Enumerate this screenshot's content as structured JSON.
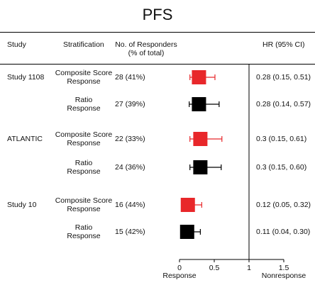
{
  "chart_data": {
    "type": "forest",
    "title": "PFS",
    "headers": {
      "study": "Study",
      "stratification": "Stratification",
      "responders": "No. of Responders\n(% of total)",
      "hr": "HR (95% CI)"
    },
    "xaxis": {
      "ticks": [
        0,
        0.5,
        1,
        1.5
      ],
      "tick_labels": [
        "0",
        "0.5",
        "1",
        "1.5"
      ],
      "range": [
        0,
        1.5
      ],
      "reference_line": 1,
      "left_label": "Response",
      "right_label": "Nonresponse"
    },
    "series": [
      {
        "name": "Composite Score Response",
        "color": "#e8272a"
      },
      {
        "name": "Ratio Response",
        "color": "#000000"
      }
    ],
    "rows": [
      {
        "study": "Study 1108",
        "stratification": "Composite Score\nResponse",
        "responders": "28 (41%)",
        "hr_text": "0.28 (0.15, 0.51)",
        "hr": 0.28,
        "ci_low": 0.15,
        "ci_high": 0.51,
        "color": "#e8272a"
      },
      {
        "study": "",
        "stratification": "Ratio\nResponse",
        "responders": "27 (39%)",
        "hr_text": "0.28 (0.14, 0.57)",
        "hr": 0.28,
        "ci_low": 0.14,
        "ci_high": 0.57,
        "color": "#000000"
      },
      {
        "study": "ATLANTIC",
        "stratification": "Composite Score\nResponse",
        "responders": "22 (33%)",
        "hr_text": "0.3 (0.15, 0.61)",
        "hr": 0.3,
        "ci_low": 0.15,
        "ci_high": 0.61,
        "color": "#e8272a"
      },
      {
        "study": "",
        "stratification": "Ratio\nResponse",
        "responders": "24 (36%)",
        "hr_text": "0.3 (0.15, 0.60)",
        "hr": 0.3,
        "ci_low": 0.15,
        "ci_high": 0.6,
        "color": "#000000"
      },
      {
        "study": "Study 10",
        "stratification": "Composite Score\nResponse",
        "responders": "16 (44%)",
        "hr_text": "0.12 (0.05, 0.32)",
        "hr": 0.12,
        "ci_low": 0.05,
        "ci_high": 0.32,
        "color": "#e8272a"
      },
      {
        "study": "",
        "stratification": "Ratio\nResponse",
        "responders": "15 (42%)",
        "hr_text": "0.11 (0.04, 0.30)",
        "hr": 0.11,
        "ci_low": 0.04,
        "ci_high": 0.3,
        "color": "#000000"
      }
    ]
  }
}
